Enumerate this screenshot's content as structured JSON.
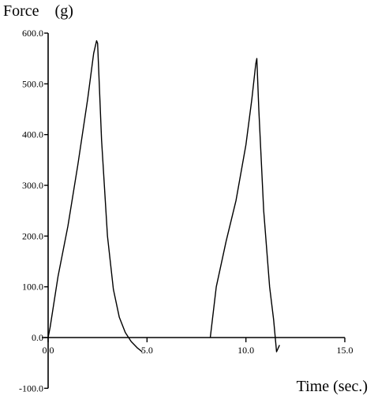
{
  "chart_data": {
    "type": "line",
    "ylabel": "Force    (g)",
    "xlabel": "Time (sec.)",
    "xlim": [
      0,
      15
    ],
    "ylim": [
      -100,
      600
    ],
    "x_ticks": [
      {
        "value": 0,
        "label": "0.0"
      },
      {
        "value": 5,
        "label": "5.0"
      },
      {
        "value": 10,
        "label": "10.0"
      },
      {
        "value": 15,
        "label": "15.0"
      }
    ],
    "y_ticks": [
      {
        "value": -100,
        "label": "-100.0"
      },
      {
        "value": 0,
        "label": "0.0"
      },
      {
        "value": 100,
        "label": "100.0"
      },
      {
        "value": 200,
        "label": "200.0"
      },
      {
        "value": 300,
        "label": "300.0"
      },
      {
        "value": 400,
        "label": "400.0"
      },
      {
        "value": 500,
        "label": "500.0"
      },
      {
        "value": 600,
        "label": "600.0"
      }
    ],
    "grid": false,
    "legend": "none",
    "line_color": "#000000",
    "series": [
      {
        "x": [
          0.0,
          0.1,
          0.5,
          1.0,
          1.5,
          2.0,
          2.3,
          2.45,
          2.5,
          2.7,
          3.0,
          3.3,
          3.6,
          3.9,
          4.2,
          4.5,
          4.75
        ],
        "y": [
          0,
          20,
          120,
          220,
          340,
          470,
          560,
          585,
          580,
          390,
          200,
          95,
          40,
          10,
          -8,
          -20,
          -28
        ]
      },
      {
        "x": [
          8.2,
          8.5,
          9.0,
          9.5,
          10.0,
          10.3,
          10.5,
          10.55,
          10.65,
          10.9,
          11.2,
          11.4,
          11.55,
          11.7
        ],
        "y": [
          0,
          100,
          190,
          270,
          380,
          470,
          540,
          550,
          450,
          250,
          100,
          35,
          -28,
          -15
        ]
      }
    ]
  }
}
